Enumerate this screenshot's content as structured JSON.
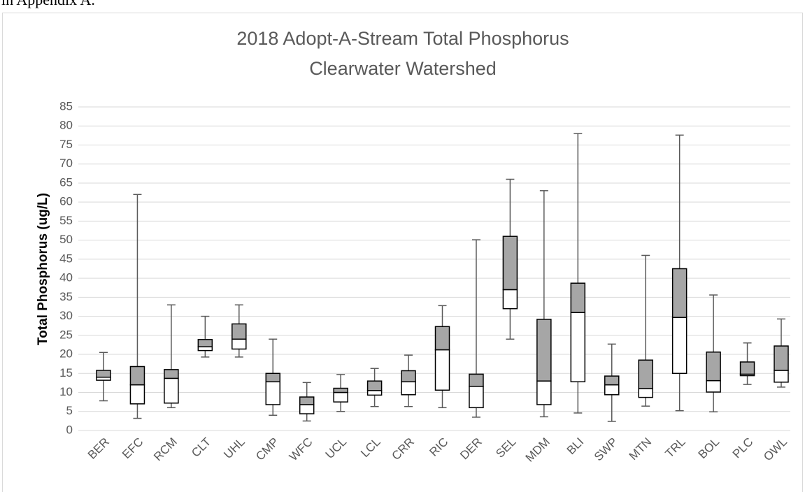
{
  "page_text": "in Appendix A.",
  "chart_data": {
    "type": "box",
    "title": "2018 Adopt-A-Stream Total Phosphorus",
    "subtitle": "Clearwater Watershed",
    "y_label": "Total Phosphorus (ug/L)",
    "categories": [
      "BER",
      "EFC",
      "RCM",
      "CLT",
      "UHL",
      "CMP",
      "WFC",
      "UCL",
      "LCL",
      "CRR",
      "RIC",
      "DER",
      "SEL",
      "MDM",
      "BLI",
      "SWP",
      "MTN",
      "TRL",
      "BOL",
      "PLC",
      "OWL"
    ],
    "min": [
      7.8,
      3.2,
      6,
      19.3,
      19.3,
      4,
      2.5,
      5,
      6.3,
      6.3,
      6,
      3.5,
      24,
      3.6,
      4.6,
      2.4,
      6.4,
      5.2,
      4.9,
      12.1,
      11.4
    ],
    "q1": [
      13.2,
      7,
      7.2,
      21,
      21.4,
      6.8,
      4.4,
      7.5,
      9.3,
      9.4,
      10.6,
      6,
      32,
      6.8,
      12.8,
      9.4,
      8.7,
      15,
      10.1,
      14.4,
      12.7
    ],
    "median": [
      14,
      12,
      13.7,
      22,
      24,
      12.8,
      6.8,
      10,
      10.5,
      12.8,
      21.2,
      11.6,
      37,
      13,
      31,
      12,
      11,
      29.7,
      13.1,
      14.8,
      15.8
    ],
    "q3": [
      15.8,
      16.8,
      16,
      23.9,
      28,
      15,
      8.8,
      11.1,
      13,
      15.7,
      27.3,
      14.8,
      51,
      29.2,
      38.7,
      14.3,
      18.5,
      42.5,
      20.6,
      18,
      22.2
    ],
    "max": [
      20.5,
      62,
      33,
      30,
      33,
      24,
      12.6,
      14.7,
      16.3,
      19.8,
      32.8,
      50.1,
      66,
      63,
      78,
      22.7,
      46,
      77.6,
      35.6,
      23,
      29.3
    ],
    "lower_color": "#ffffff",
    "upper_color": "#a6a6a6",
    "ylim": [
      0,
      85
    ],
    "yticks": [
      0,
      5,
      10,
      15,
      20,
      25,
      30,
      35,
      40,
      45,
      50,
      55,
      60,
      65,
      70,
      75,
      80,
      85
    ],
    "grid": true
  }
}
